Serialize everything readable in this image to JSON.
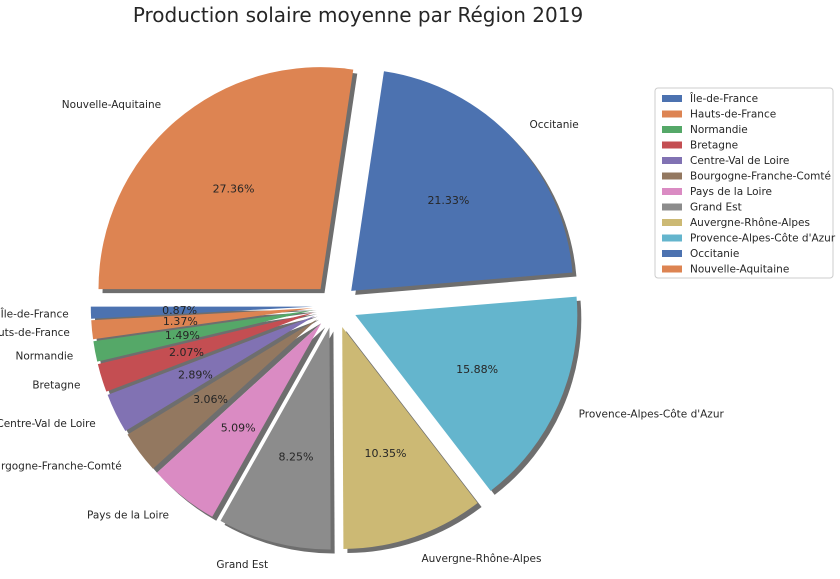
{
  "chart_data": {
    "type": "pie",
    "title": "Production solaire moyenne par Région 2019",
    "legend_position": "right",
    "start_angle_deg": 180,
    "direction": "counterclockwise",
    "shadow": true,
    "slices": [
      {
        "label": "Île-de-France",
        "value": 0.87,
        "pct_label": "0.87%",
        "color": "#4c72b0",
        "explode": 0.1
      },
      {
        "label": "Hauts-de-France",
        "value": 1.37,
        "pct_label": "1.37%",
        "color": "#dd8452",
        "explode": 0.1
      },
      {
        "label": "Normandie",
        "value": 1.49,
        "pct_label": "1.49%",
        "color": "#55a868",
        "explode": 0.1
      },
      {
        "label": "Bretagne",
        "value": 2.07,
        "pct_label": "2.07%",
        "color": "#c44e52",
        "explode": 0.1
      },
      {
        "label": "Centre-Val de Loire",
        "value": 2.89,
        "pct_label": "2.89%",
        "color": "#8172b3",
        "explode": 0.1
      },
      {
        "label": "Bourgogne-Franche-Comté",
        "value": 3.06,
        "pct_label": "3.06%",
        "color": "#937860",
        "explode": 0.1
      },
      {
        "label": "Pays de la Loire",
        "value": 5.09,
        "pct_label": "5.09%",
        "color": "#da8bc3",
        "explode": 0.1
      },
      {
        "label": "Grand Est",
        "value": 8.25,
        "pct_label": "8.25%",
        "color": "#8c8c8c",
        "explode": 0.1
      },
      {
        "label": "Auvergne-Rhône-Alpes",
        "value": 10.35,
        "pct_label": "10.35%",
        "color": "#ccb974",
        "explode": 0.1
      },
      {
        "label": "Provence-Alpes-Côte d'Azur",
        "value": 15.88,
        "pct_label": "15.88%",
        "color": "#64b5cd",
        "explode": 0.1
      },
      {
        "label": "Occitanie",
        "value": 21.33,
        "pct_label": "21.33%",
        "color": "#4c72b0",
        "explode": 0.1
      },
      {
        "label": "Nouvelle-Aquitaine",
        "value": 27.36,
        "pct_label": "27.36%",
        "color": "#dd8452",
        "explode": 0.1
      }
    ]
  }
}
